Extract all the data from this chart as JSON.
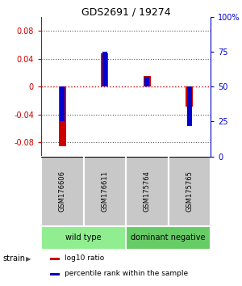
{
  "title": "GDS2691 / 19274",
  "samples": [
    "GSM176606",
    "GSM176611",
    "GSM175764",
    "GSM175765"
  ],
  "log10_ratio": [
    -0.085,
    0.048,
    0.015,
    -0.028
  ],
  "percentile_rank": [
    25,
    75,
    57,
    22
  ],
  "groups": [
    {
      "label": "wild type",
      "samples": [
        0,
        1
      ],
      "color": "#90EE90"
    },
    {
      "label": "dominant negative",
      "samples": [
        2,
        3
      ],
      "color": "#66CC66"
    }
  ],
  "group_row_label": "strain",
  "ylim": [
    -0.1,
    0.1
  ],
  "yticks_left": [
    -0.08,
    -0.04,
    0.0,
    0.04,
    0.08
  ],
  "yticks_right": [
    0,
    25,
    50,
    75,
    100
  ],
  "red_bar_width": 0.18,
  "blue_bar_width": 0.12,
  "red_color": "#CC0000",
  "blue_color": "#0000CC",
  "dotted_line_color": "#555555",
  "zero_line_color": "#CC0000",
  "sample_box_color": "#C8C8C8",
  "legend_red_label": "log10 ratio",
  "legend_blue_label": "percentile rank within the sample"
}
